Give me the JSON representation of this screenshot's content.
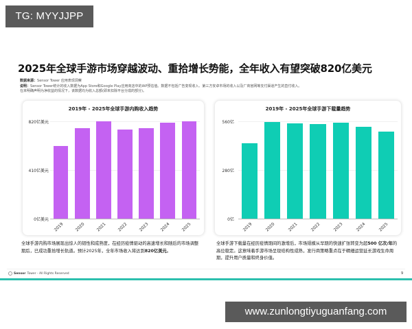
{
  "overlay": {
    "tg_label": "TG: MYYJJPP",
    "url_label": "www.zunlongtiyuguanfang.com"
  },
  "page": {
    "title": "2025年全球手游市场穿越波动、重拾增长势能，全年收入有望突破820亿美元",
    "notes": {
      "source_label": "数据来源：",
      "source_value": "Sensor Tower 应用表现洞察",
      "explain_label": "说明：",
      "explain_line1": "Sensor Tower统计的收入数据为App Store和Google Play应用商店中的IAP预估值。数据不包括广告变现收入、第三方安卓市场的收入以及厂商官网等支付渠道产生的直付收入。",
      "explain_line2": "在未明确声明为净收益的情况下，该数据均为收入总额(即未扣除平台分成的部分)。"
    },
    "left_description": {
      "text": "全球手游内购市场展现出惊人的韧性和成熟度，在经历疫情驱动的高速增长和随后的市场调整期后，已成功重拾增长轨道。预计2025年，全年市场收入将达到",
      "bold": "820亿美元",
      "end": "。"
    },
    "right_description": {
      "text_start": "全球手游下载量在经历疫情期间的激增后，市场规模从早期的快速扩张转变为超",
      "bold": "500 亿次/年",
      "text_end": "的高位稳定。这意味着手游市场呈现结构性成熟，发行商策略重点在于精细运营延长游戏生命周期，提升用户质量和终身价值。"
    },
    "footer": {
      "brand_bold": "Sensor",
      "brand_rest": "Tower - All Rights Reserved",
      "page_number": "9"
    }
  },
  "colors": {
    "revenue_bar": "#c462f2",
    "download_bar": "#0fcdb4",
    "footer_bar": "#2cbfae",
    "badge_bg": "#5a5a5a"
  },
  "chart_data": [
    {
      "type": "bar",
      "title": "2019年 - 2025年全球手游内购收入趋势",
      "categories": [
        "2019",
        "2020",
        "2021",
        "2022",
        "2023",
        "2024",
        "2025"
      ],
      "values": [
        612,
        762,
        820,
        751,
        762,
        808,
        820
      ],
      "unit": "亿美元",
      "xlabel": "",
      "ylabel": "",
      "ylim": [
        0,
        820
      ],
      "yticks": [
        "0亿美元",
        "410亿美元",
        "820亿美元"
      ],
      "grid": true,
      "legend": "none",
      "color": "#c462f2"
    },
    {
      "type": "bar",
      "title": "2019年 - 2025年全球手游下载量趋势",
      "categories": [
        "2019",
        "2020",
        "2021",
        "2022",
        "2023",
        "2024",
        "2025"
      ],
      "values": [
        434,
        556,
        548,
        546,
        552,
        528,
        502
      ],
      "unit": "亿",
      "xlabel": "",
      "ylabel": "",
      "ylim": [
        0,
        560
      ],
      "yticks": [
        "0亿",
        "280亿",
        "560亿"
      ],
      "grid": true,
      "legend": "none",
      "color": "#0fcdb4"
    }
  ]
}
